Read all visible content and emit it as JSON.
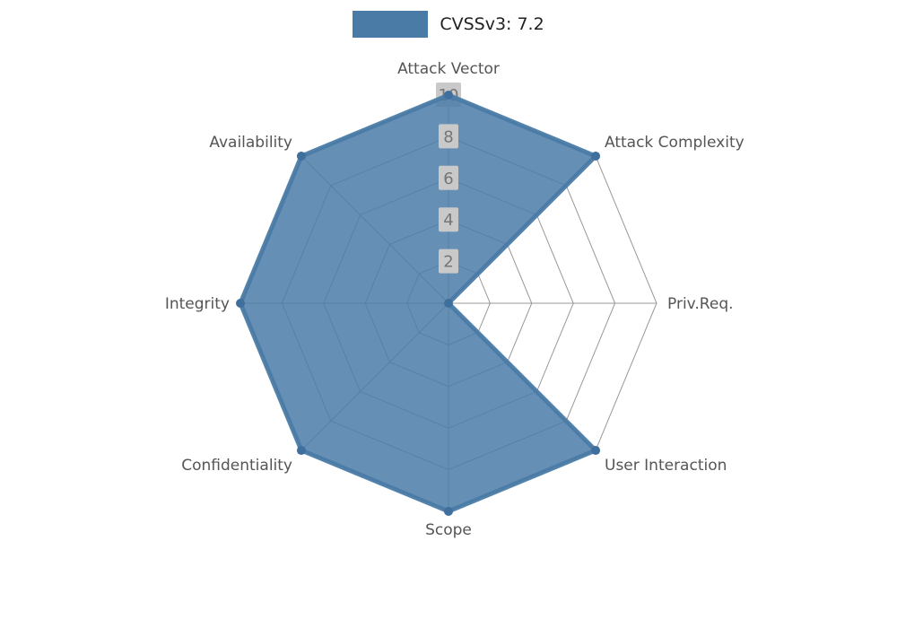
{
  "chart_data": {
    "type": "radar",
    "title": "",
    "legend": {
      "label": "CVSSv3: 7.2",
      "position": "top-center"
    },
    "categories": [
      "Attack Vector",
      "Attack Complexity",
      "Priv.Req.",
      "User Interaction",
      "Scope",
      "Confidentiality",
      "Integrity",
      "Availability"
    ],
    "series": [
      {
        "name": "CVSSv3: 7.2",
        "values": [
          10,
          10,
          0,
          10,
          10,
          10,
          10,
          10
        ]
      }
    ],
    "ticks": [
      2,
      4,
      6,
      8,
      10
    ],
    "axis_range": [
      0,
      10
    ],
    "max": 10,
    "grid": true,
    "colors": {
      "fill": "#4a7ba7",
      "stroke": "#4a7ba7",
      "dot": "#3f6f9d",
      "grid": "#999999",
      "tick_box": "#c9c9c9",
      "tick_text": "#757575",
      "label_text": "#555555",
      "legend_text": "#222222",
      "background": "#ffffff"
    }
  }
}
